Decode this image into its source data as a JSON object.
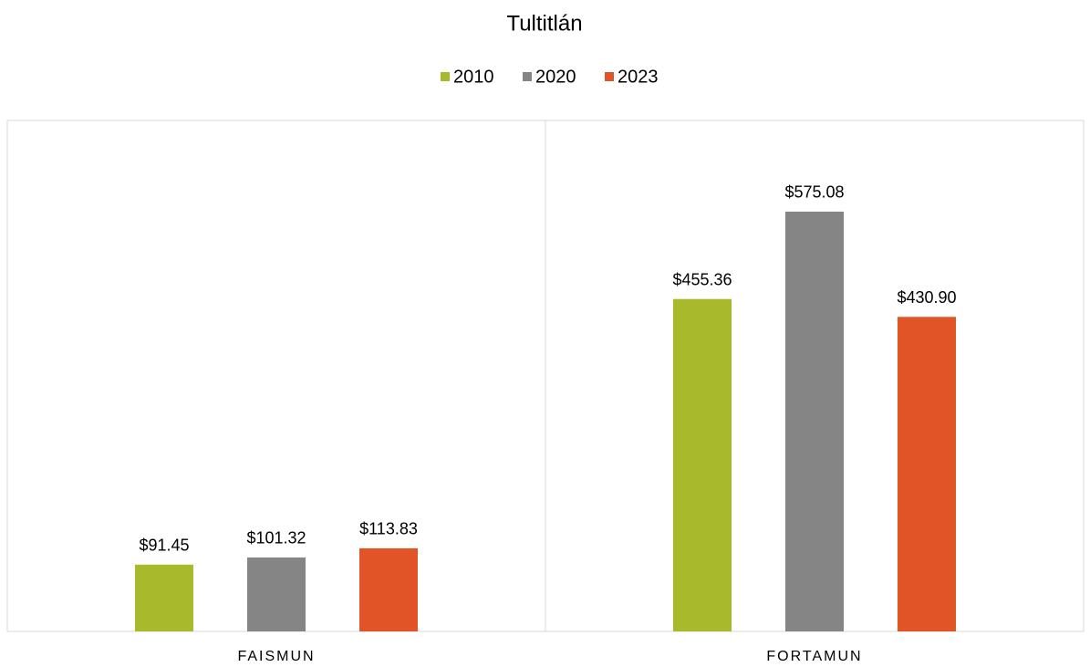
{
  "chart_data": {
    "type": "bar",
    "title": "Tultitlán",
    "categories": [
      "FAISMUN",
      "FORTAMUN"
    ],
    "series": [
      {
        "name": "2010",
        "color": "#a8b92b",
        "values": [
          91.45,
          455.36
        ],
        "value_labels": [
          "$91.45",
          "$455.36"
        ]
      },
      {
        "name": "2020",
        "color": "#858585",
        "values": [
          101.32,
          575.08
        ],
        "value_labels": [
          "$101.32",
          "$575.08"
        ]
      },
      {
        "name": "2023",
        "color": "#e05428",
        "values": [
          113.83,
          430.9
        ],
        "value_labels": [
          "$113.83",
          "$430.90"
        ]
      }
    ],
    "ylim": [
      0,
      700
    ],
    "legend": "top"
  }
}
